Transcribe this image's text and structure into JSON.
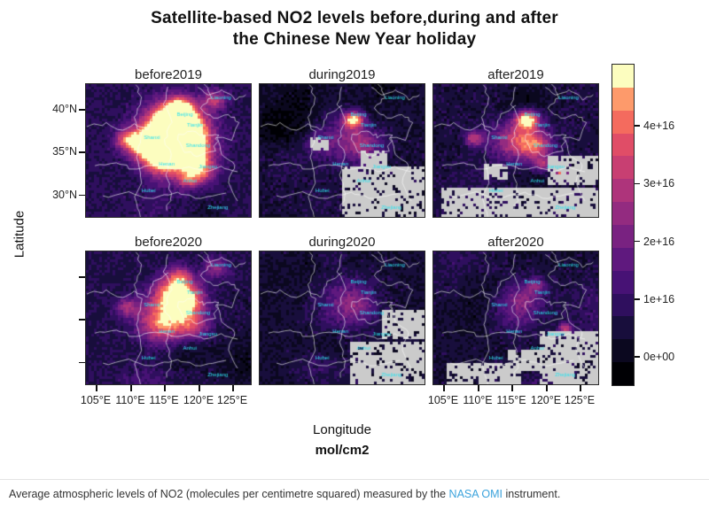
{
  "title": {
    "line1": "Satellite-based NO2 levels before,during and after",
    "line2": "the Chinese New Year holiday"
  },
  "axes": {
    "latitude": "Latitude",
    "longitude": "Longitude",
    "units": "mol/cm2"
  },
  "caption": {
    "text_before": "Average atmospheric levels of NO2 (molecules per centimetre squared) measured by the ",
    "link_text": "NASA OMI",
    "text_after": " instrument."
  },
  "chart_data": {
    "type": "heatmap",
    "title": "Satellite-based NO2 levels before,during and after the Chinese New Year holiday",
    "xlabel": "Longitude",
    "ylabel": "Latitude",
    "units": "mol/cm2",
    "x_ticks": [
      "105°E",
      "110°E",
      "115°E",
      "120°E",
      "125°E"
    ],
    "y_ticks": [
      "40°N",
      "35°N",
      "30°N"
    ],
    "colorbar": {
      "ticks": [
        "0e+00",
        "1e+16",
        "2e+16",
        "3e+16",
        "4e+16"
      ],
      "colormap": "magma",
      "value_range": [
        0,
        5e+16
      ],
      "legend_position": "right"
    },
    "colors": {
      "missing_data": "#cbcbcb",
      "province_label": "#2fe3ef",
      "link": "#3ba3dc",
      "boundary": "rgba(255,255,255,0.85)"
    },
    "region_labels": [
      {
        "name": "Liaoning",
        "x": 0.82,
        "y": 0.11
      },
      {
        "name": "Beijing",
        "x": 0.6,
        "y": 0.24
      },
      {
        "name": "Tianjin",
        "x": 0.66,
        "y": 0.32
      },
      {
        "name": "Shanxi",
        "x": 0.4,
        "y": 0.41
      },
      {
        "name": "Shandong",
        "x": 0.68,
        "y": 0.47
      },
      {
        "name": "Henan",
        "x": 0.49,
        "y": 0.61
      },
      {
        "name": "Jiangsu",
        "x": 0.74,
        "y": 0.63
      },
      {
        "name": "Anhui",
        "x": 0.63,
        "y": 0.74
      },
      {
        "name": "Hubei",
        "x": 0.38,
        "y": 0.81
      },
      {
        "name": "Zhejiang",
        "x": 0.8,
        "y": 0.94
      }
    ],
    "panels": [
      {
        "label": "before2019",
        "relative_no2": "highest, large bright plume over North China Plain",
        "peak": "~4e+16",
        "base": 0.2,
        "seed": 11,
        "missing": [],
        "hotspots": [
          [
            0.54,
            0.28,
            0.1,
            0.85
          ],
          [
            0.5,
            0.42,
            0.14,
            0.9
          ],
          [
            0.46,
            0.56,
            0.1,
            0.7
          ],
          [
            0.6,
            0.38,
            0.09,
            0.8
          ],
          [
            0.57,
            0.18,
            0.06,
            0.6
          ],
          [
            0.35,
            0.44,
            0.07,
            0.45
          ],
          [
            0.66,
            0.55,
            0.08,
            0.55
          ],
          [
            0.25,
            0.42,
            0.05,
            0.45
          ],
          [
            0.78,
            0.12,
            0.05,
            0.45
          ],
          [
            0.7,
            0.66,
            0.06,
            0.45
          ],
          [
            0.62,
            0.72,
            0.05,
            0.4
          ]
        ]
      },
      {
        "label": "during2019",
        "relative_no2": "strongly reduced, small hotspot near Beijing, missing data south-east",
        "peak": "~3e+16",
        "base": 0.14,
        "seed": 22,
        "missing": [
          [
            0.5,
            0.62,
            0.5,
            0.38
          ],
          [
            0.3,
            0.4,
            0.12,
            0.1
          ],
          [
            0.62,
            0.5,
            0.15,
            0.12
          ]
        ],
        "hotspots": [
          [
            0.57,
            0.27,
            0.045,
            0.85
          ],
          [
            0.52,
            0.42,
            0.12,
            0.3
          ],
          [
            0.64,
            0.46,
            0.08,
            0.25
          ],
          [
            0.35,
            0.44,
            0.05,
            0.2
          ]
        ]
      },
      {
        "label": "after2019",
        "relative_no2": "partial rebound, hotspots near Beijing and coast, missing strip along south",
        "peak": "~3e+16",
        "base": 0.15,
        "seed": 33,
        "missing": [
          [
            0.05,
            0.78,
            0.95,
            0.22
          ],
          [
            0.7,
            0.55,
            0.3,
            0.2
          ],
          [
            0.3,
            0.6,
            0.15,
            0.12
          ]
        ],
        "hotspots": [
          [
            0.57,
            0.27,
            0.05,
            0.9
          ],
          [
            0.5,
            0.42,
            0.1,
            0.5
          ],
          [
            0.62,
            0.46,
            0.07,
            0.5
          ],
          [
            0.25,
            0.41,
            0.04,
            0.5
          ],
          [
            0.78,
            0.68,
            0.025,
            0.9
          ],
          [
            0.66,
            0.6,
            0.04,
            0.4
          ]
        ]
      },
      {
        "label": "before2020",
        "relative_no2": "high but lower than before2019",
        "peak": "~3e+16",
        "base": 0.18,
        "seed": 44,
        "missing": [],
        "hotspots": [
          [
            0.54,
            0.3,
            0.09,
            0.65
          ],
          [
            0.5,
            0.44,
            0.13,
            0.6
          ],
          [
            0.46,
            0.57,
            0.09,
            0.45
          ],
          [
            0.6,
            0.38,
            0.08,
            0.55
          ],
          [
            0.57,
            0.18,
            0.05,
            0.4
          ],
          [
            0.25,
            0.42,
            0.05,
            0.35
          ],
          [
            0.78,
            0.12,
            0.05,
            0.3
          ],
          [
            0.66,
            0.56,
            0.07,
            0.35
          ]
        ]
      },
      {
        "label": "during2020",
        "relative_no2": "lowest, uniformly dark, missing data south-east",
        "peak": "~1e+16",
        "base": 0.13,
        "seed": 55,
        "missing": [
          [
            0.55,
            0.68,
            0.45,
            0.32
          ],
          [
            0.75,
            0.45,
            0.25,
            0.2
          ]
        ],
        "hotspots": [
          [
            0.54,
            0.33,
            0.1,
            0.22
          ],
          [
            0.5,
            0.48,
            0.12,
            0.18
          ],
          [
            0.62,
            0.42,
            0.07,
            0.15
          ]
        ]
      },
      {
        "label": "after2020",
        "relative_no2": "still low, little rebound, missing patches along south and east",
        "peak": "~1e+16",
        "base": 0.14,
        "seed": 66,
        "missing": [
          [
            0.08,
            0.85,
            0.45,
            0.15
          ],
          [
            0.65,
            0.6,
            0.35,
            0.4
          ],
          [
            0.45,
            0.75,
            0.2,
            0.15
          ]
        ],
        "hotspots": [
          [
            0.55,
            0.32,
            0.08,
            0.3
          ],
          [
            0.5,
            0.46,
            0.1,
            0.25
          ],
          [
            0.8,
            0.58,
            0.03,
            0.5
          ],
          [
            0.62,
            0.25,
            0.04,
            0.3
          ]
        ]
      }
    ]
  }
}
